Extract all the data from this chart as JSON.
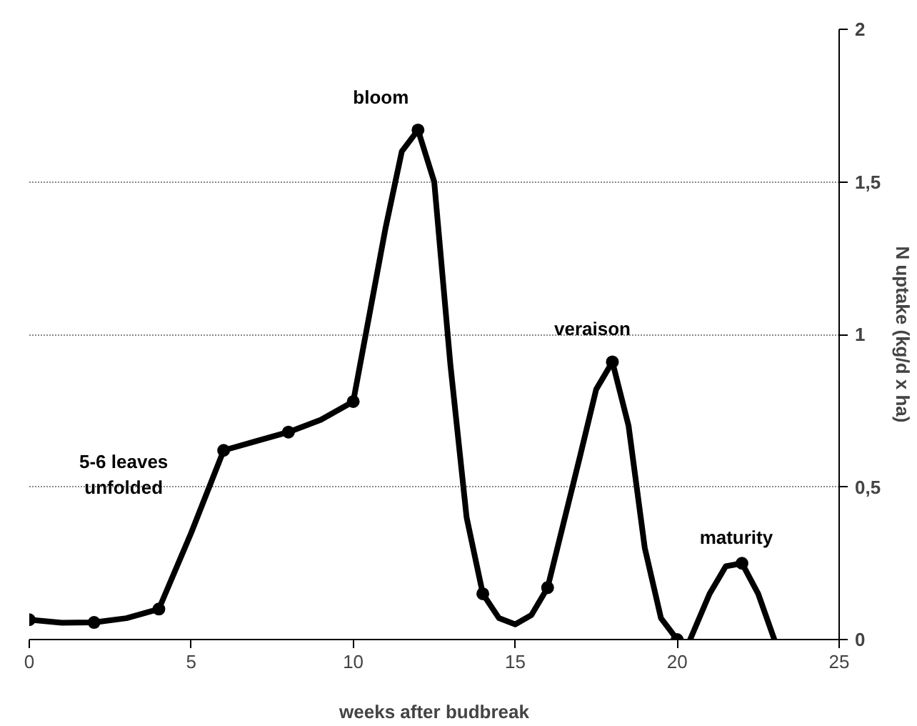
{
  "chart_data": {
    "type": "line",
    "xlabel": "weeks after budbreak",
    "ylabel": "N uptake (kg/d x ha)",
    "xlim": [
      0,
      25
    ],
    "ylim": [
      0,
      2
    ],
    "xticks": [
      0,
      5,
      10,
      15,
      20,
      25
    ],
    "yticks": [
      0,
      {
        "value": 0.5,
        "label": "0,5"
      },
      1,
      {
        "value": 1.5,
        "label": "1,5"
      },
      2
    ],
    "grid": "y",
    "series": [
      {
        "color": "#000000",
        "marker": "none",
        "line_style": "solid",
        "x": [
          0,
          1,
          2,
          3,
          4,
          5,
          6,
          7,
          8,
          9,
          10,
          11,
          11.5,
          12,
          12.5,
          13,
          13.5,
          14,
          14.5,
          15,
          15.5,
          16,
          17,
          17.5,
          18,
          18.5,
          19,
          19.5,
          20,
          20.2,
          20.4,
          21,
          21.5,
          22,
          22.5,
          23
        ],
        "values": [
          0.065,
          0.055,
          0.056,
          0.07,
          0.1,
          0.35,
          0.62,
          0.65,
          0.68,
          0.72,
          0.78,
          1.35,
          1.6,
          1.67,
          1.5,
          0.9,
          0.4,
          0.15,
          0.07,
          0.05,
          0.08,
          0.17,
          0.6,
          0.82,
          0.91,
          0.7,
          0.3,
          0.07,
          0,
          null,
          0,
          0.15,
          0.24,
          0.25,
          0.15,
          0
        ]
      },
      {
        "type": "scatter",
        "color": "#000000",
        "marker": "circle",
        "x": [
          0,
          2,
          4,
          6,
          8,
          10,
          12,
          14,
          16,
          18,
          20,
          22
        ],
        "values": [
          0.065,
          0.056,
          0.1,
          0.62,
          0.68,
          0.78,
          1.67,
          0.15,
          0.17,
          0.91,
          0,
          0.25
        ]
      }
    ],
    "annotations": [
      {
        "text": "bloom",
        "x": 12,
        "y": 1.67
      },
      {
        "text": "5-6 leaves\nunfolded",
        "x": 6,
        "y": 0.62
      },
      {
        "text": "veraison",
        "x": 18,
        "y": 0.91
      },
      {
        "text": "maturity",
        "x": 22,
        "y": 0.25
      }
    ]
  }
}
